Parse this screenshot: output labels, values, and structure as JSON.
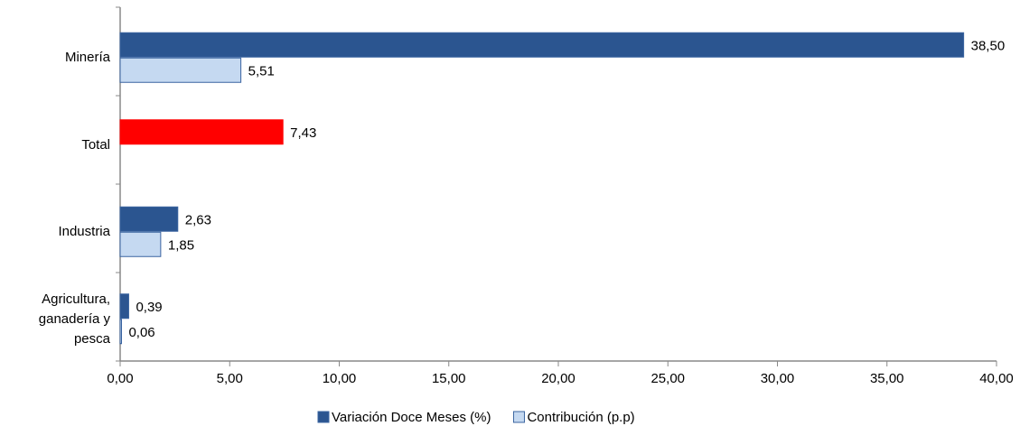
{
  "chart_data": {
    "type": "hbar",
    "categories": [
      "Minería",
      "Total",
      "Industria",
      "Agricultura, ganadería y pesca"
    ],
    "series": [
      {
        "name": "Variación Doce Meses (%)",
        "color": "#2b5590",
        "values": [
          38.5,
          7.43,
          2.63,
          0.39
        ],
        "value_labels": [
          "38,50",
          "7,43",
          "2,63",
          "0,39"
        ]
      },
      {
        "name": "Contribución (p.p)",
        "color": "#c5d9f1",
        "values": [
          5.51,
          null,
          1.85,
          0.06
        ],
        "value_labels": [
          "5,51",
          null,
          "1,85",
          "0,06"
        ]
      }
    ],
    "highlight": {
      "index": 1,
      "color": "#ff0000"
    },
    "xlim": [
      0,
      40
    ],
    "xticks": [
      {
        "value": 0,
        "label": "0,00"
      },
      {
        "value": 5,
        "label": "5,00"
      },
      {
        "value": 10,
        "label": "10,00"
      },
      {
        "value": 15,
        "label": "15,00"
      },
      {
        "value": 20,
        "label": "20,00"
      },
      {
        "value": 25,
        "label": "25,00"
      },
      {
        "value": 30,
        "label": "30,00"
      },
      {
        "value": 35,
        "label": "35,00"
      },
      {
        "value": 40,
        "label": "40,00"
      }
    ],
    "grid": false,
    "legend": "bottom"
  }
}
